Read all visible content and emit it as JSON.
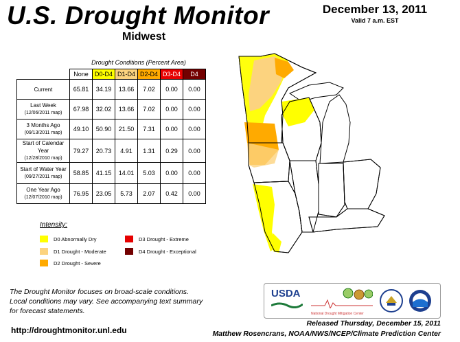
{
  "header": {
    "title": "U.S. Drought Monitor",
    "region": "Midwest",
    "date": "December 13, 2011",
    "valid": "Valid 7 a.m. EST"
  },
  "table": {
    "caption": "Drought Conditions (Percent Area)",
    "columns": [
      "None",
      "D0-D4",
      "D1-D4",
      "D2-D4",
      "D3-D4",
      "D4"
    ],
    "column_colors": [
      "#ffffff",
      "#ffff00",
      "#fcd37f",
      "#ffaa00",
      "#e60000",
      "#730000"
    ],
    "rows": [
      {
        "label": "Current",
        "sub": "",
        "values": [
          "65.81",
          "34.19",
          "13.66",
          "7.02",
          "0.00",
          "0.00"
        ]
      },
      {
        "label": "Last Week",
        "sub": "(12/06/2011 map)",
        "values": [
          "67.98",
          "32.02",
          "13.66",
          "7.02",
          "0.00",
          "0.00"
        ]
      },
      {
        "label": "3 Months Ago",
        "sub": "(09/13/2011 map)",
        "values": [
          "49.10",
          "50.90",
          "21.50",
          "7.31",
          "0.00",
          "0.00"
        ]
      },
      {
        "label": "Start of Calendar Year",
        "sub": "(12/28/2010 map)",
        "values": [
          "79.27",
          "20.73",
          "4.91",
          "1.31",
          "0.29",
          "0.00"
        ]
      },
      {
        "label": "Start of Water Year",
        "sub": "(09/27/2011 map)",
        "values": [
          "58.85",
          "41.15",
          "14.01",
          "5.03",
          "0.00",
          "0.00"
        ]
      },
      {
        "label": "One Year Ago",
        "sub": "(12/07/2010 map)",
        "values": [
          "76.95",
          "23.05",
          "5.73",
          "2.07",
          "0.42",
          "0.00"
        ]
      }
    ]
  },
  "legend": {
    "title": "Intensity:",
    "items": [
      {
        "label": "D0 Abnormally Dry",
        "color": "#ffff00"
      },
      {
        "label": "D1 Drought - Moderate",
        "color": "#fcd37f"
      },
      {
        "label": "D2 Drought - Severe",
        "color": "#ffaa00"
      },
      {
        "label": "D3 Drought - Extreme",
        "color": "#e60000"
      },
      {
        "label": "D4 Drought - Exceptional",
        "color": "#730000"
      }
    ]
  },
  "footer": {
    "note_line1": "The Drought Monitor focuses on broad-scale conditions.",
    "note_line2": "Local conditions may vary. See accompanying text summary",
    "note_line3": "for forecast statements.",
    "url": "http://droughtmonitor.unl.edu",
    "released": "Released Thursday, December 15, 2011",
    "author": "Matthew Rosencrans, NOAA/NWS/NCEP/Climate Prediction Center"
  },
  "logos": {
    "usda": "USDA",
    "ndmc": "National Drought Mitigation Center"
  }
}
